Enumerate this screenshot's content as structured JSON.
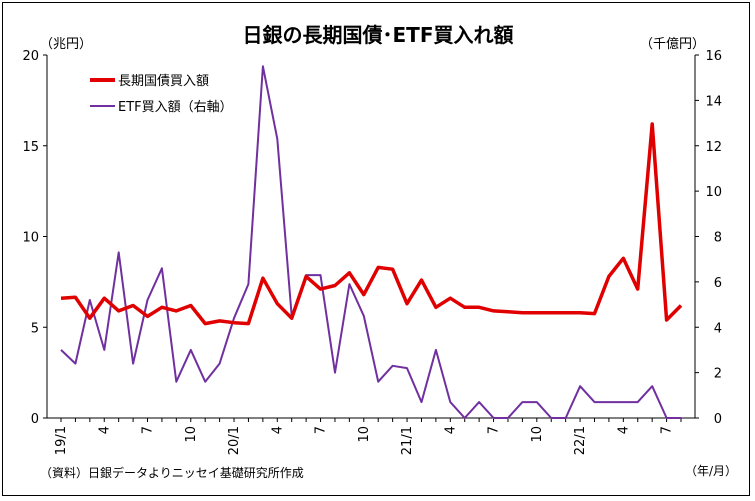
{
  "chart_data": {
    "type": "line",
    "title": "日銀の長期国債･ETF買入れ額",
    "left_unit": "（兆円）",
    "right_unit": "（千億円）",
    "x_unit": "（年/月）",
    "source": "（資料）日銀データよりニッセイ基礎研究所作成",
    "y_left": {
      "min": 0,
      "max": 20,
      "ticks": [
        "0",
        "5",
        "10",
        "15",
        "20"
      ]
    },
    "y_right": {
      "min": 0,
      "max": 16,
      "ticks": [
        "0",
        "2",
        "4",
        "6",
        "8",
        "10",
        "12",
        "14",
        "16"
      ]
    },
    "x_labels": [
      {
        "label": "19/1",
        "index": 0
      },
      {
        "label": "4",
        "index": 3
      },
      {
        "label": "7",
        "index": 6
      },
      {
        "label": "10",
        "index": 9
      },
      {
        "label": "20/1",
        "index": 12
      },
      {
        "label": "4",
        "index": 15
      },
      {
        "label": "7",
        "index": 18
      },
      {
        "label": "10",
        "index": 21
      },
      {
        "label": "21/1",
        "index": 24
      },
      {
        "label": "4",
        "index": 27
      },
      {
        "label": "7",
        "index": 30
      },
      {
        "label": "10",
        "index": 33
      },
      {
        "label": "22/1",
        "index": 36
      },
      {
        "label": "4",
        "index": 39
      },
      {
        "label": "7",
        "index": 42
      }
    ],
    "grid": false,
    "legend_position": "top-left",
    "series": [
      {
        "name": "長期国債買入額",
        "axis": "left",
        "color": "#e00000",
        "values": [
          6.6,
          6.65,
          5.5,
          6.6,
          5.9,
          6.2,
          5.6,
          6.1,
          5.9,
          6.2,
          5.2,
          5.35,
          5.25,
          5.2,
          7.7,
          6.3,
          5.5,
          7.8,
          7.1,
          7.3,
          8.0,
          6.8,
          8.3,
          8.2,
          6.3,
          7.6,
          6.1,
          6.6,
          6.1,
          6.1,
          5.9,
          5.85,
          5.8,
          5.8,
          5.8,
          5.8,
          5.8,
          5.75,
          7.8,
          8.8,
          7.1,
          16.2,
          5.4,
          6.2
        ]
      },
      {
        "name": "ETF買入額（右軸）",
        "axis": "right",
        "color": "#7030a0",
        "values": [
          3.0,
          2.4,
          5.2,
          3.0,
          7.3,
          2.4,
          5.2,
          6.6,
          1.6,
          3.0,
          1.6,
          2.4,
          4.4,
          5.9,
          15.5,
          12.3,
          4.5,
          6.3,
          6.3,
          2.0,
          5.9,
          4.5,
          1.6,
          2.3,
          2.2,
          0.7,
          3.0,
          0.7,
          0.0,
          0.7,
          0.0,
          0.0,
          0.7,
          0.7,
          0.0,
          0.0,
          1.4,
          0.7,
          0.7,
          0.7,
          0.7,
          1.4,
          0.0,
          0.0
        ]
      }
    ]
  }
}
